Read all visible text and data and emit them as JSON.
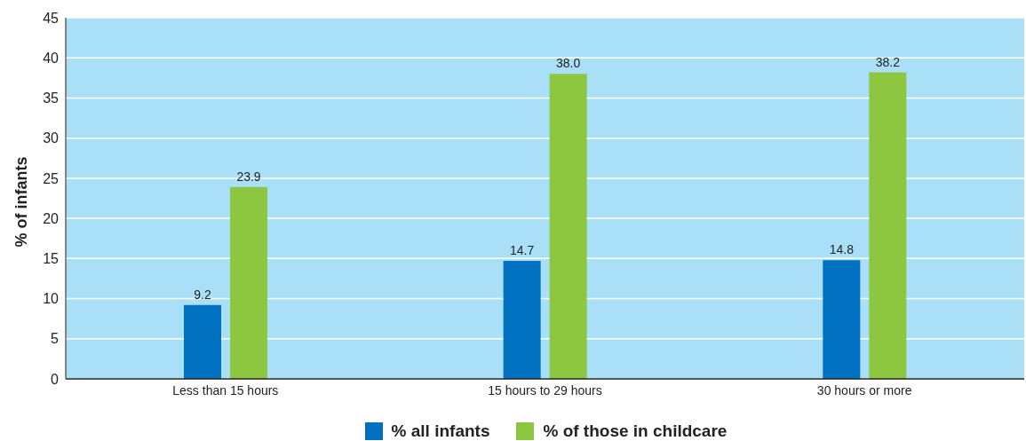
{
  "chart_data": {
    "type": "bar",
    "ylabel": "% of infants",
    "categories": [
      "Less than 15 hours",
      "15 hours to 29 hours",
      "30 hours or more"
    ],
    "series": [
      {
        "name": "% all infants",
        "color": "#0070c0",
        "values": [
          9.2,
          14.7,
          14.8
        ],
        "value_labels": [
          "9.2",
          "14.7",
          "14.8"
        ]
      },
      {
        "name": "% of those in childcare",
        "color": "#8dc63f",
        "values": [
          23.9,
          38.0,
          38.2
        ],
        "value_labels": [
          "23.9",
          "38.0",
          "38.2"
        ]
      }
    ],
    "ylim": [
      0,
      45
    ],
    "yticks": [
      0,
      5,
      10,
      15,
      20,
      25,
      30,
      35,
      40,
      45
    ],
    "grid": "y",
    "legend": "bottom"
  }
}
